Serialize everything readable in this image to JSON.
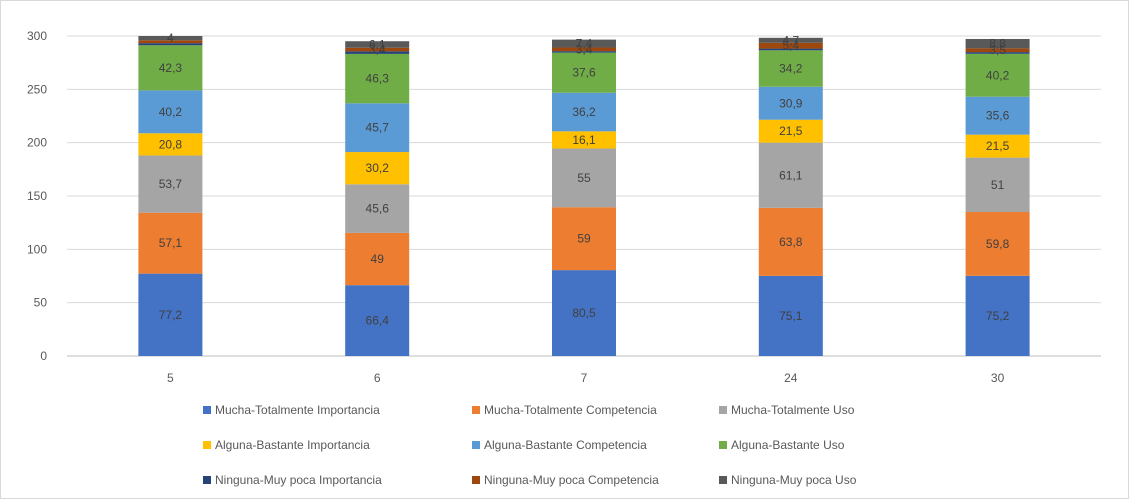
{
  "chart_data": {
    "type": "bar",
    "stacked": true,
    "title": "",
    "xlabel": "",
    "ylabel": "",
    "categories": [
      "5",
      "6",
      "7",
      "24",
      "30"
    ],
    "ylim": [
      0,
      300
    ],
    "yticks": [
      0,
      50,
      100,
      150,
      200,
      250,
      300
    ],
    "grid": true,
    "legend_position": "bottom",
    "series": [
      {
        "name": "Mucha-Totalmente Importancia",
        "color": "#4472c4",
        "values": [
          77.2,
          66.4,
          80.5,
          75.1,
          75.2
        ],
        "labels": [
          "77,2",
          "66,4",
          "80,5",
          "75,1",
          "75,2"
        ]
      },
      {
        "name": "Mucha-Totalmente Competencia",
        "color": "#ed7d31",
        "values": [
          57.1,
          49,
          59,
          63.8,
          59.8
        ],
        "labels": [
          "57,1",
          "49",
          "59",
          "63,8",
          "59,8"
        ]
      },
      {
        "name": "Mucha-Totalmente Uso",
        "color": "#a5a5a5",
        "values": [
          53.7,
          45.6,
          55,
          61.1,
          51
        ],
        "labels": [
          "53,7",
          "45,6",
          "55",
          "61,1",
          "51"
        ]
      },
      {
        "name": "Alguna-Bastante Importancia",
        "color": "#ffc000",
        "values": [
          20.8,
          30.2,
          16.1,
          21.5,
          21.5
        ],
        "labels": [
          "20,8",
          "30,2",
          "16,1",
          "21,5",
          "21,5"
        ]
      },
      {
        "name": "Alguna-Bastante Competencia",
        "color": "#5b9bd5",
        "values": [
          40.2,
          45.7,
          36.2,
          30.9,
          35.6
        ],
        "labels": [
          "40,2",
          "45,7",
          "36,2",
          "30,9",
          "35,6"
        ]
      },
      {
        "name": "Alguna-Bastante Uso",
        "color": "#70ad47",
        "values": [
          42.3,
          46.3,
          37.6,
          34.2,
          40.2
        ],
        "labels": [
          "42,3",
          "46,3",
          "37,6",
          "34,2",
          "40,2"
        ]
      },
      {
        "name": "Ninguna-Muy poca Importancia",
        "color": "#264478",
        "values": [
          2,
          2.4,
          1.4,
          1.6,
          1.6
        ],
        "labels": [
          "",
          "",
          "",
          "",
          ""
        ]
      },
      {
        "name": "Ninguna-Muy poca Competencia",
        "color": "#9e480e",
        "values": [
          2.7,
          3.4,
          3.4,
          5.4,
          3.5
        ],
        "labels": [
          "",
          "3,4",
          "3,4",
          "5,4",
          "3,5"
        ]
      },
      {
        "name": "Ninguna-Muy poca Uso",
        "color": "#595959",
        "values": [
          4,
          6.1,
          7.4,
          4.7,
          8.8
        ],
        "labels": [
          "4",
          "6,1",
          "7,4",
          "4,7",
          "8,8"
        ]
      }
    ]
  }
}
